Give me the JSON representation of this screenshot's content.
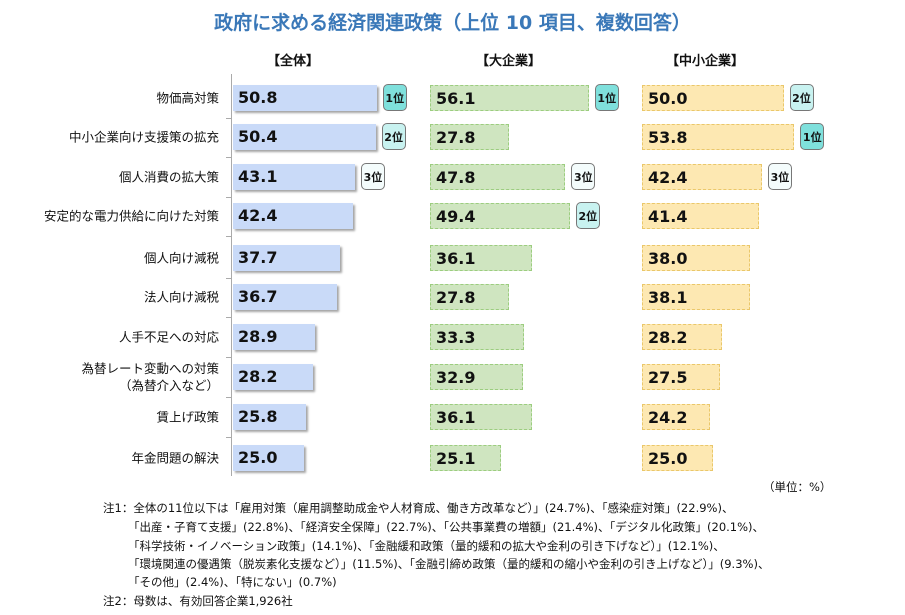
{
  "chart_data": {
    "type": "bar",
    "orientation": "horizontal",
    "title": "政府に求める経済関連政策（上位 10 項目、複数回答）",
    "unit_label": "（単位：%）",
    "xlim": [
      0,
      60
    ],
    "categories": [
      "物価高対策",
      "中小企業向け支援策の拡充",
      "個人消費の拡大策",
      "安定的な電力供給に向けた対策",
      "個人向け減税",
      "法人向け減税",
      "人手不足への対応",
      "為替レート変動への対策\n（為替介入など）",
      "賃上げ政策",
      "年金問題の解決"
    ],
    "series": [
      {
        "name": "【全体】",
        "color": "#c9daf8",
        "values": [
          50.8,
          50.4,
          43.1,
          42.4,
          37.7,
          36.7,
          28.9,
          28.2,
          25.8,
          25.0
        ],
        "labels": [
          "50.8",
          "50.4",
          "43.1",
          "42.4",
          "37.7",
          "36.7",
          "28.9",
          "28.2",
          "25.8",
          "25.0"
        ],
        "ranks": {
          "0": "1位",
          "1": "2位",
          "2": "3位"
        }
      },
      {
        "name": "【大企業】",
        "color": "#cfe5c0",
        "values": [
          56.1,
          27.8,
          47.8,
          49.4,
          36.1,
          27.8,
          33.3,
          32.9,
          36.1,
          25.1
        ],
        "labels": [
          "56.1",
          "27.8",
          "47.8",
          "49.4",
          "36.1",
          "27.8",
          "33.3",
          "32.9",
          "36.1",
          "25.1"
        ],
        "ranks": {
          "0": "1位",
          "3": "2位",
          "2": "3位"
        }
      },
      {
        "name": "【中小企業】",
        "color": "#fde8b2",
        "values": [
          50.0,
          53.8,
          42.4,
          41.4,
          38.0,
          38.1,
          28.2,
          27.5,
          24.2,
          25.0
        ],
        "labels": [
          "50.0",
          "53.8",
          "42.4",
          "41.4",
          "38.0",
          "38.1",
          "28.2",
          "27.5",
          "24.2",
          "25.0"
        ],
        "ranks": {
          "1": "1位",
          "0": "2位",
          "2": "3位"
        }
      }
    ],
    "rank_colors": {
      "1位": "#7fe0dc",
      "2位": "#c8f2f0",
      "3位": "#f4fcfc"
    }
  },
  "notes": [
    "注1：全体の11位以下は「雇用対策（雇用調整助成金や人材育成、働き方改革など）」(24.7%)、「感染症対策」(22.9%)、",
    "「出産・子育て支援」(22.8%)、「経済安全保障」(22.7%)、「公共事業費の増額」(21.4%)、「デジタル化政策」(20.1%)、",
    "「科学技術・イノベーション政策」(14.1%)、「金融緩和政策（量的緩和の拡大や金利の引き下げなど）」(12.1%)、",
    "「環境関連の優遇策（脱炭素化支援など）」(11.5%)、「金融引締め政策（量的緩和の縮小や金利の引き上げなど）」(9.3%)、",
    "「その他」(2.4%)、「特にない」(0.7%)",
    "注2：母数は、有効回答企業1,926社"
  ]
}
